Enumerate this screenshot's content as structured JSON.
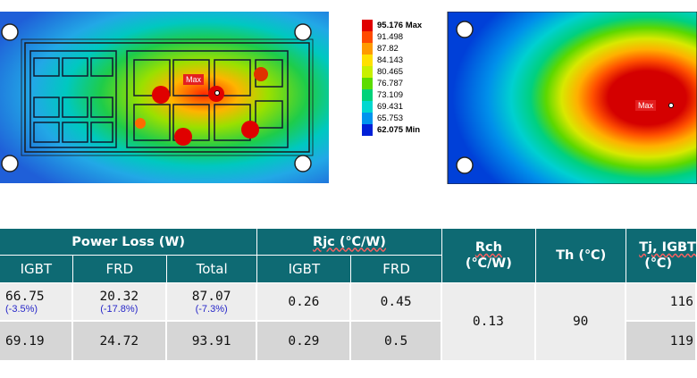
{
  "sim_left": {
    "max_label": "Max"
  },
  "sim_right": {
    "max_label": "Max",
    "legend": [
      {
        "label": "95.176 Max",
        "color": "#e00000",
        "bold": true
      },
      {
        "label": "91.498",
        "color": "#ff4a00",
        "bold": false
      },
      {
        "label": "87.82",
        "color": "#ff9a00",
        "bold": false
      },
      {
        "label": "84.143",
        "color": "#ffe000",
        "bold": false
      },
      {
        "label": "80.465",
        "color": "#c8f000",
        "bold": false
      },
      {
        "label": "76.787",
        "color": "#5cdc00",
        "bold": false
      },
      {
        "label": "73.109",
        "color": "#00d27a",
        "bold": false
      },
      {
        "label": "69.431",
        "color": "#00d8d0",
        "bold": false
      },
      {
        "label": "65.753",
        "color": "#0094ee",
        "bold": false
      },
      {
        "label": "62.075 Min",
        "color": "#0020d8",
        "bold": true
      }
    ]
  },
  "table": {
    "header": {
      "power_loss": "Power Loss (W)",
      "rjc": "Rjc (℃/W)",
      "rch": "Rch",
      "rch_unit": "(℃/W)",
      "th": "Th (℃)",
      "tj": "Tj, IGBT",
      "tj_unit": "(℃)",
      "igbt": "IGBT",
      "frd": "FRD",
      "total": "Total",
      "rjc_igbt": "IGBT",
      "rjc_frd": "FRD"
    },
    "rows": [
      {
        "igbt": "66.75",
        "igbt_delta": "(-3.5%)",
        "frd": "20.32",
        "frd_delta": "(-17.8%)",
        "total": "87.07",
        "total_delta": "(-7.3%)",
        "rjc_igbt": "0.26",
        "rjc_frd": "0.45",
        "tj": "116"
      },
      {
        "igbt": "69.19",
        "frd": "24.72",
        "total": "93.91",
        "rjc_igbt": "0.29",
        "rjc_frd": "0.5",
        "tj": "119"
      }
    ],
    "rch_value": "0.13",
    "th_value": "90"
  }
}
